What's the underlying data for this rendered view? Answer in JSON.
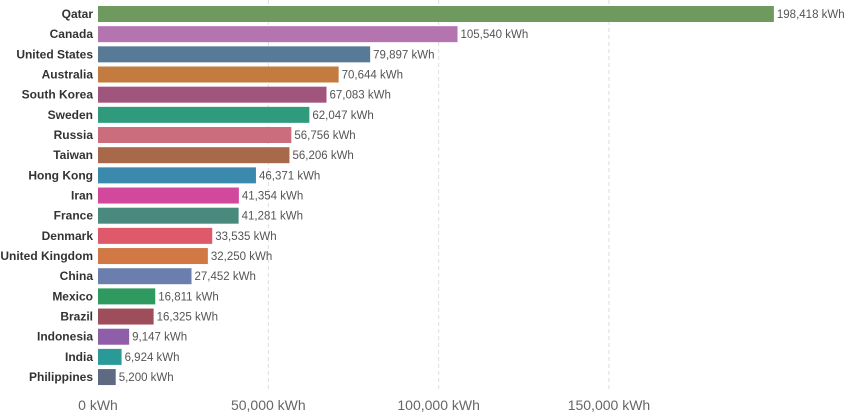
{
  "chart_data": {
    "type": "bar",
    "orientation": "horizontal",
    "categories": [
      "Qatar",
      "Canada",
      "United States",
      "Australia",
      "South Korea",
      "Sweden",
      "Russia",
      "Taiwan",
      "Hong Kong",
      "Iran",
      "France",
      "Denmark",
      "United Kingdom",
      "China",
      "Mexico",
      "Brazil",
      "Indonesia",
      "India",
      "Philippines"
    ],
    "values": [
      198418,
      105540,
      79897,
      70644,
      67083,
      62047,
      56756,
      56206,
      46371,
      41354,
      41281,
      33535,
      32250,
      27452,
      16811,
      16325,
      9147,
      6924,
      5200
    ],
    "value_labels": [
      "198,418 kWh",
      "105,540 kWh",
      "79,897 kWh",
      "70,644 kWh",
      "67,083 kWh",
      "62,047 kWh",
      "56,756 kWh",
      "56,206 kWh",
      "46,371 kWh",
      "41,354 kWh",
      "41,281 kWh",
      "33,535 kWh",
      "32,250 kWh",
      "27,452 kWh",
      "16,811 kWh",
      "16,325 kWh",
      "9,147 kWh",
      "6,924 kWh",
      "5,200 kWh"
    ],
    "colors": [
      "#6f9a5f",
      "#b374b0",
      "#577b96",
      "#c47b3f",
      "#a0567c",
      "#2f9a7c",
      "#cc6d7d",
      "#a8694a",
      "#3b8aae",
      "#d1489d",
      "#4a8a7e",
      "#de5a6a",
      "#d17845",
      "#6a7fae",
      "#2e9a5f",
      "#9e4e5a",
      "#8e5ea8",
      "#2a9a98",
      "#5e6a82"
    ],
    "xticks": [
      0,
      50000,
      100000,
      150000
    ],
    "xtick_labels": [
      "0 kWh",
      "50,000 kWh",
      "100,000 kWh",
      "150,000 kWh"
    ],
    "xlim": [
      0,
      200000
    ],
    "grid": true,
    "title": "",
    "xlabel": "",
    "ylabel": ""
  }
}
